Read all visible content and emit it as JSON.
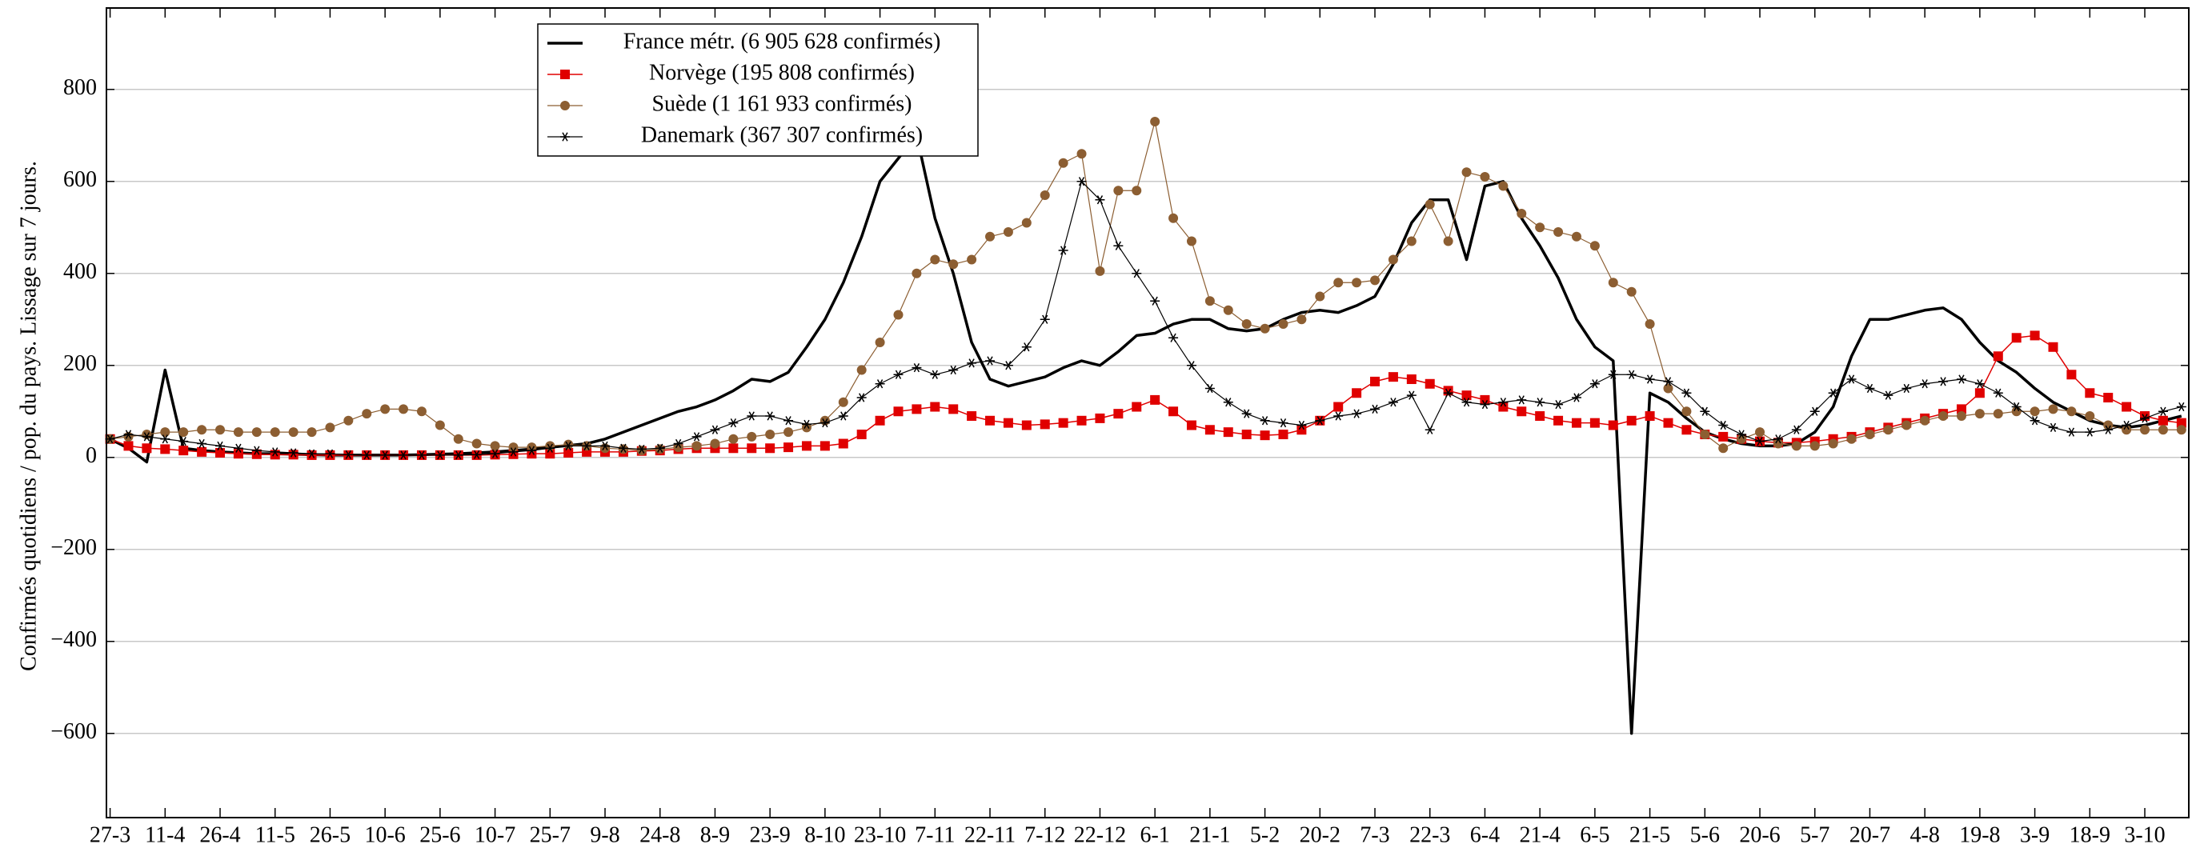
{
  "chart_data": {
    "type": "line",
    "ylabel": "Confirmés quotidiens / pop. du pays. Lissage sur 7 jours.",
    "x": [
      0,
      5,
      10,
      15,
      20,
      25,
      30,
      35,
      40,
      45,
      50,
      55,
      60,
      65,
      70,
      75,
      80,
      85,
      90,
      95,
      100,
      105,
      110,
      115,
      120,
      125,
      130,
      135,
      140,
      145,
      150,
      155,
      160,
      165,
      170,
      175,
      180,
      185,
      190,
      195,
      200,
      205,
      210,
      215,
      220,
      225,
      230,
      235,
      240,
      245,
      250,
      255,
      260,
      265,
      270,
      275,
      280,
      285,
      290,
      295,
      300,
      305,
      310,
      315,
      320,
      325,
      330,
      335,
      340,
      345,
      350,
      355,
      360,
      365,
      370,
      375,
      380,
      385,
      390,
      395,
      400,
      405,
      410,
      415,
      420,
      425,
      430,
      435,
      440,
      445,
      450,
      455,
      460,
      465,
      470,
      475,
      480,
      485,
      490,
      495,
      500,
      505,
      510,
      515,
      520,
      525,
      530,
      535,
      540,
      545,
      550,
      555,
      560,
      565
    ],
    "xlim": [
      -1,
      567
    ],
    "xticks": [
      {
        "value": 0,
        "label": "27-3"
      },
      {
        "value": 15,
        "label": "11-4"
      },
      {
        "value": 30,
        "label": "26-4"
      },
      {
        "value": 45,
        "label": "11-5"
      },
      {
        "value": 60,
        "label": "26-5"
      },
      {
        "value": 75,
        "label": "10-6"
      },
      {
        "value": 90,
        "label": "25-6"
      },
      {
        "value": 105,
        "label": "10-7"
      },
      {
        "value": 120,
        "label": "25-7"
      },
      {
        "value": 135,
        "label": "9-8"
      },
      {
        "value": 150,
        "label": "24-8"
      },
      {
        "value": 165,
        "label": "8-9"
      },
      {
        "value": 180,
        "label": "23-9"
      },
      {
        "value": 195,
        "label": "8-10"
      },
      {
        "value": 210,
        "label": "23-10"
      },
      {
        "value": 225,
        "label": "7-11"
      },
      {
        "value": 240,
        "label": "22-11"
      },
      {
        "value": 255,
        "label": "7-12"
      },
      {
        "value": 270,
        "label": "22-12"
      },
      {
        "value": 285,
        "label": "6-1"
      },
      {
        "value": 300,
        "label": "21-1"
      },
      {
        "value": 315,
        "label": "5-2"
      },
      {
        "value": 330,
        "label": "20-2"
      },
      {
        "value": 345,
        "label": "7-3"
      },
      {
        "value": 360,
        "label": "22-3"
      },
      {
        "value": 375,
        "label": "6-4"
      },
      {
        "value": 390,
        "label": "21-4"
      },
      {
        "value": 405,
        "label": "6-5"
      },
      {
        "value": 420,
        "label": "21-5"
      },
      {
        "value": 435,
        "label": "5-6"
      },
      {
        "value": 450,
        "label": "20-6"
      },
      {
        "value": 465,
        "label": "5-7"
      },
      {
        "value": 480,
        "label": "20-7"
      },
      {
        "value": 495,
        "label": "4-8"
      },
      {
        "value": 510,
        "label": "19-8"
      },
      {
        "value": 525,
        "label": "3-9"
      },
      {
        "value": 540,
        "label": "18-9"
      },
      {
        "value": 555,
        "label": "3-10"
      }
    ],
    "ylim": [
      -783,
      977
    ],
    "yticks": [
      {
        "value": -600,
        "label": "−600"
      },
      {
        "value": -400,
        "label": "−400"
      },
      {
        "value": -200,
        "label": "−200"
      },
      0,
      200,
      400,
      600,
      800
    ],
    "grid": true,
    "legend": "upper left",
    "series": [
      {
        "name": "France métr. (6 905 628 confirmés)",
        "color": "#000000",
        "marker": "none",
        "values": [
          40,
          20,
          -10,
          190,
          20,
          15,
          12,
          10,
          8,
          8,
          7,
          6,
          5,
          5,
          5,
          5,
          5,
          6,
          7,
          8,
          10,
          12,
          15,
          18,
          22,
          26,
          30,
          40,
          55,
          70,
          85,
          100,
          110,
          125,
          145,
          170,
          165,
          185,
          240,
          300,
          380,
          480,
          600,
          650,
          700,
          520,
          400,
          250,
          170,
          155,
          165,
          175,
          195,
          210,
          200,
          230,
          265,
          270,
          290,
          300,
          300,
          280,
          275,
          280,
          300,
          315,
          320,
          315,
          330,
          350,
          420,
          510,
          560,
          560,
          430,
          590,
          600,
          520,
          460,
          390,
          300,
          240,
          210,
          -600,
          140,
          120,
          85,
          55,
          40,
          30,
          25,
          25,
          30,
          55,
          110,
          220,
          300,
          300,
          310,
          320,
          325,
          300,
          250,
          210,
          185,
          150,
          120,
          100,
          80,
          70,
          65,
          70,
          80,
          90
        ]
      },
      {
        "name": "Norvège (195 808 confirmés)",
        "color": "#e00000",
        "marker": "square",
        "values": [
          40,
          25,
          20,
          18,
          15,
          12,
          10,
          8,
          7,
          6,
          6,
          5,
          5,
          5,
          5,
          5,
          5,
          5,
          5,
          5,
          5,
          6,
          7,
          8,
          8,
          10,
          12,
          12,
          12,
          14,
          15,
          18,
          20,
          20,
          20,
          20,
          20,
          22,
          25,
          25,
          30,
          50,
          80,
          100,
          105,
          110,
          105,
          90,
          80,
          75,
          70,
          72,
          75,
          80,
          85,
          95,
          110,
          125,
          100,
          70,
          60,
          55,
          50,
          48,
          50,
          60,
          80,
          110,
          140,
          165,
          175,
          170,
          160,
          145,
          135,
          125,
          110,
          100,
          90,
          80,
          75,
          75,
          70,
          80,
          90,
          75,
          60,
          50,
          45,
          40,
          35,
          32,
          32,
          35,
          40,
          45,
          55,
          65,
          75,
          85,
          95,
          105,
          140,
          220,
          260,
          265,
          240,
          180,
          140,
          130,
          110,
          90,
          80,
          75
        ]
      },
      {
        "name": "Suède (1 161 933 confirmés)",
        "color": "#8c5e32",
        "marker": "circle",
        "values": [
          40,
          45,
          50,
          55,
          55,
          60,
          60,
          55,
          55,
          55,
          55,
          55,
          65,
          80,
          95,
          105,
          105,
          100,
          70,
          40,
          30,
          25,
          22,
          22,
          25,
          28,
          25,
          20,
          18,
          15,
          18,
          22,
          25,
          30,
          40,
          45,
          50,
          55,
          65,
          80,
          120,
          190,
          250,
          310,
          400,
          430,
          420,
          430,
          480,
          490,
          510,
          570,
          640,
          660,
          405,
          580,
          580,
          730,
          520,
          470,
          340,
          320,
          290,
          280,
          290,
          300,
          350,
          380,
          380,
          385,
          430,
          470,
          550,
          470,
          620,
          610,
          590,
          530,
          500,
          490,
          480,
          460,
          380,
          360,
          290,
          150,
          100,
          50,
          20,
          40,
          55,
          30,
          25,
          25,
          30,
          40,
          50,
          60,
          70,
          80,
          90,
          90,
          95,
          95,
          100,
          100,
          105,
          100,
          90,
          70,
          60,
          60,
          60,
          60
        ]
      },
      {
        "name": "Danemark (367 307 confirmés)",
        "color": "#000000",
        "marker": "star",
        "values": [
          40,
          50,
          45,
          40,
          35,
          30,
          25,
          20,
          15,
          12,
          10,
          8,
          8,
          6,
          5,
          5,
          5,
          5,
          5,
          5,
          6,
          8,
          12,
          15,
          20,
          25,
          25,
          25,
          20,
          18,
          20,
          30,
          45,
          60,
          75,
          90,
          90,
          80,
          72,
          75,
          90,
          130,
          160,
          180,
          195,
          180,
          190,
          205,
          210,
          200,
          240,
          300,
          450,
          600,
          560,
          460,
          400,
          340,
          260,
          200,
          150,
          120,
          95,
          80,
          75,
          70,
          80,
          90,
          95,
          105,
          120,
          135,
          60,
          140,
          120,
          115,
          120,
          125,
          120,
          115,
          130,
          160,
          180,
          180,
          170,
          165,
          140,
          100,
          70,
          50,
          35,
          40,
          60,
          100,
          140,
          170,
          150,
          135,
          150,
          160,
          165,
          170,
          160,
          140,
          110,
          80,
          65,
          55,
          55,
          60,
          70,
          85,
          100,
          110
        ]
      }
    ]
  }
}
